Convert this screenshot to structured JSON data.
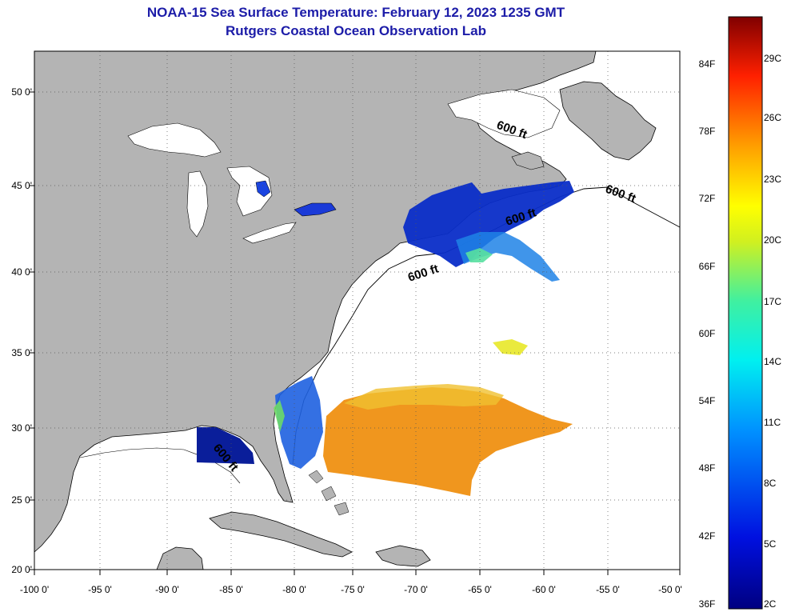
{
  "title": "NOAA-15 Sea Surface Temperature:  February 12, 2023 1235 GMT",
  "subtitle": "Rutgers Coastal Ocean Observation Lab",
  "lat_ticks": [
    "50 0'",
    "45 0'",
    "40 0'",
    "35 0'",
    "30 0'",
    "25 0'",
    "20 0'"
  ],
  "lon_ticks": [
    "-100 0'",
    "-95 0'",
    "-90 0'",
    "-85 0'",
    "-80 0'",
    "-75 0'",
    "-70 0'",
    "-65 0'",
    "-60 0'",
    "-55 0'",
    "-50 0'"
  ],
  "colorbar": {
    "fahrenheit": [
      "84F",
      "78F",
      "72F",
      "66F",
      "60F",
      "54F",
      "48F",
      "42F",
      "36F"
    ],
    "celsius": [
      "29C",
      "26C",
      "23C",
      "20C",
      "17C",
      "14C",
      "11C",
      "8C",
      "5C",
      "2C"
    ]
  },
  "contour_label": "600 ft",
  "colors": {
    "land": "#b4b4b4",
    "title": "#1c1ca8",
    "cold": "#0a2dc8",
    "warm": "#f0961e"
  }
}
